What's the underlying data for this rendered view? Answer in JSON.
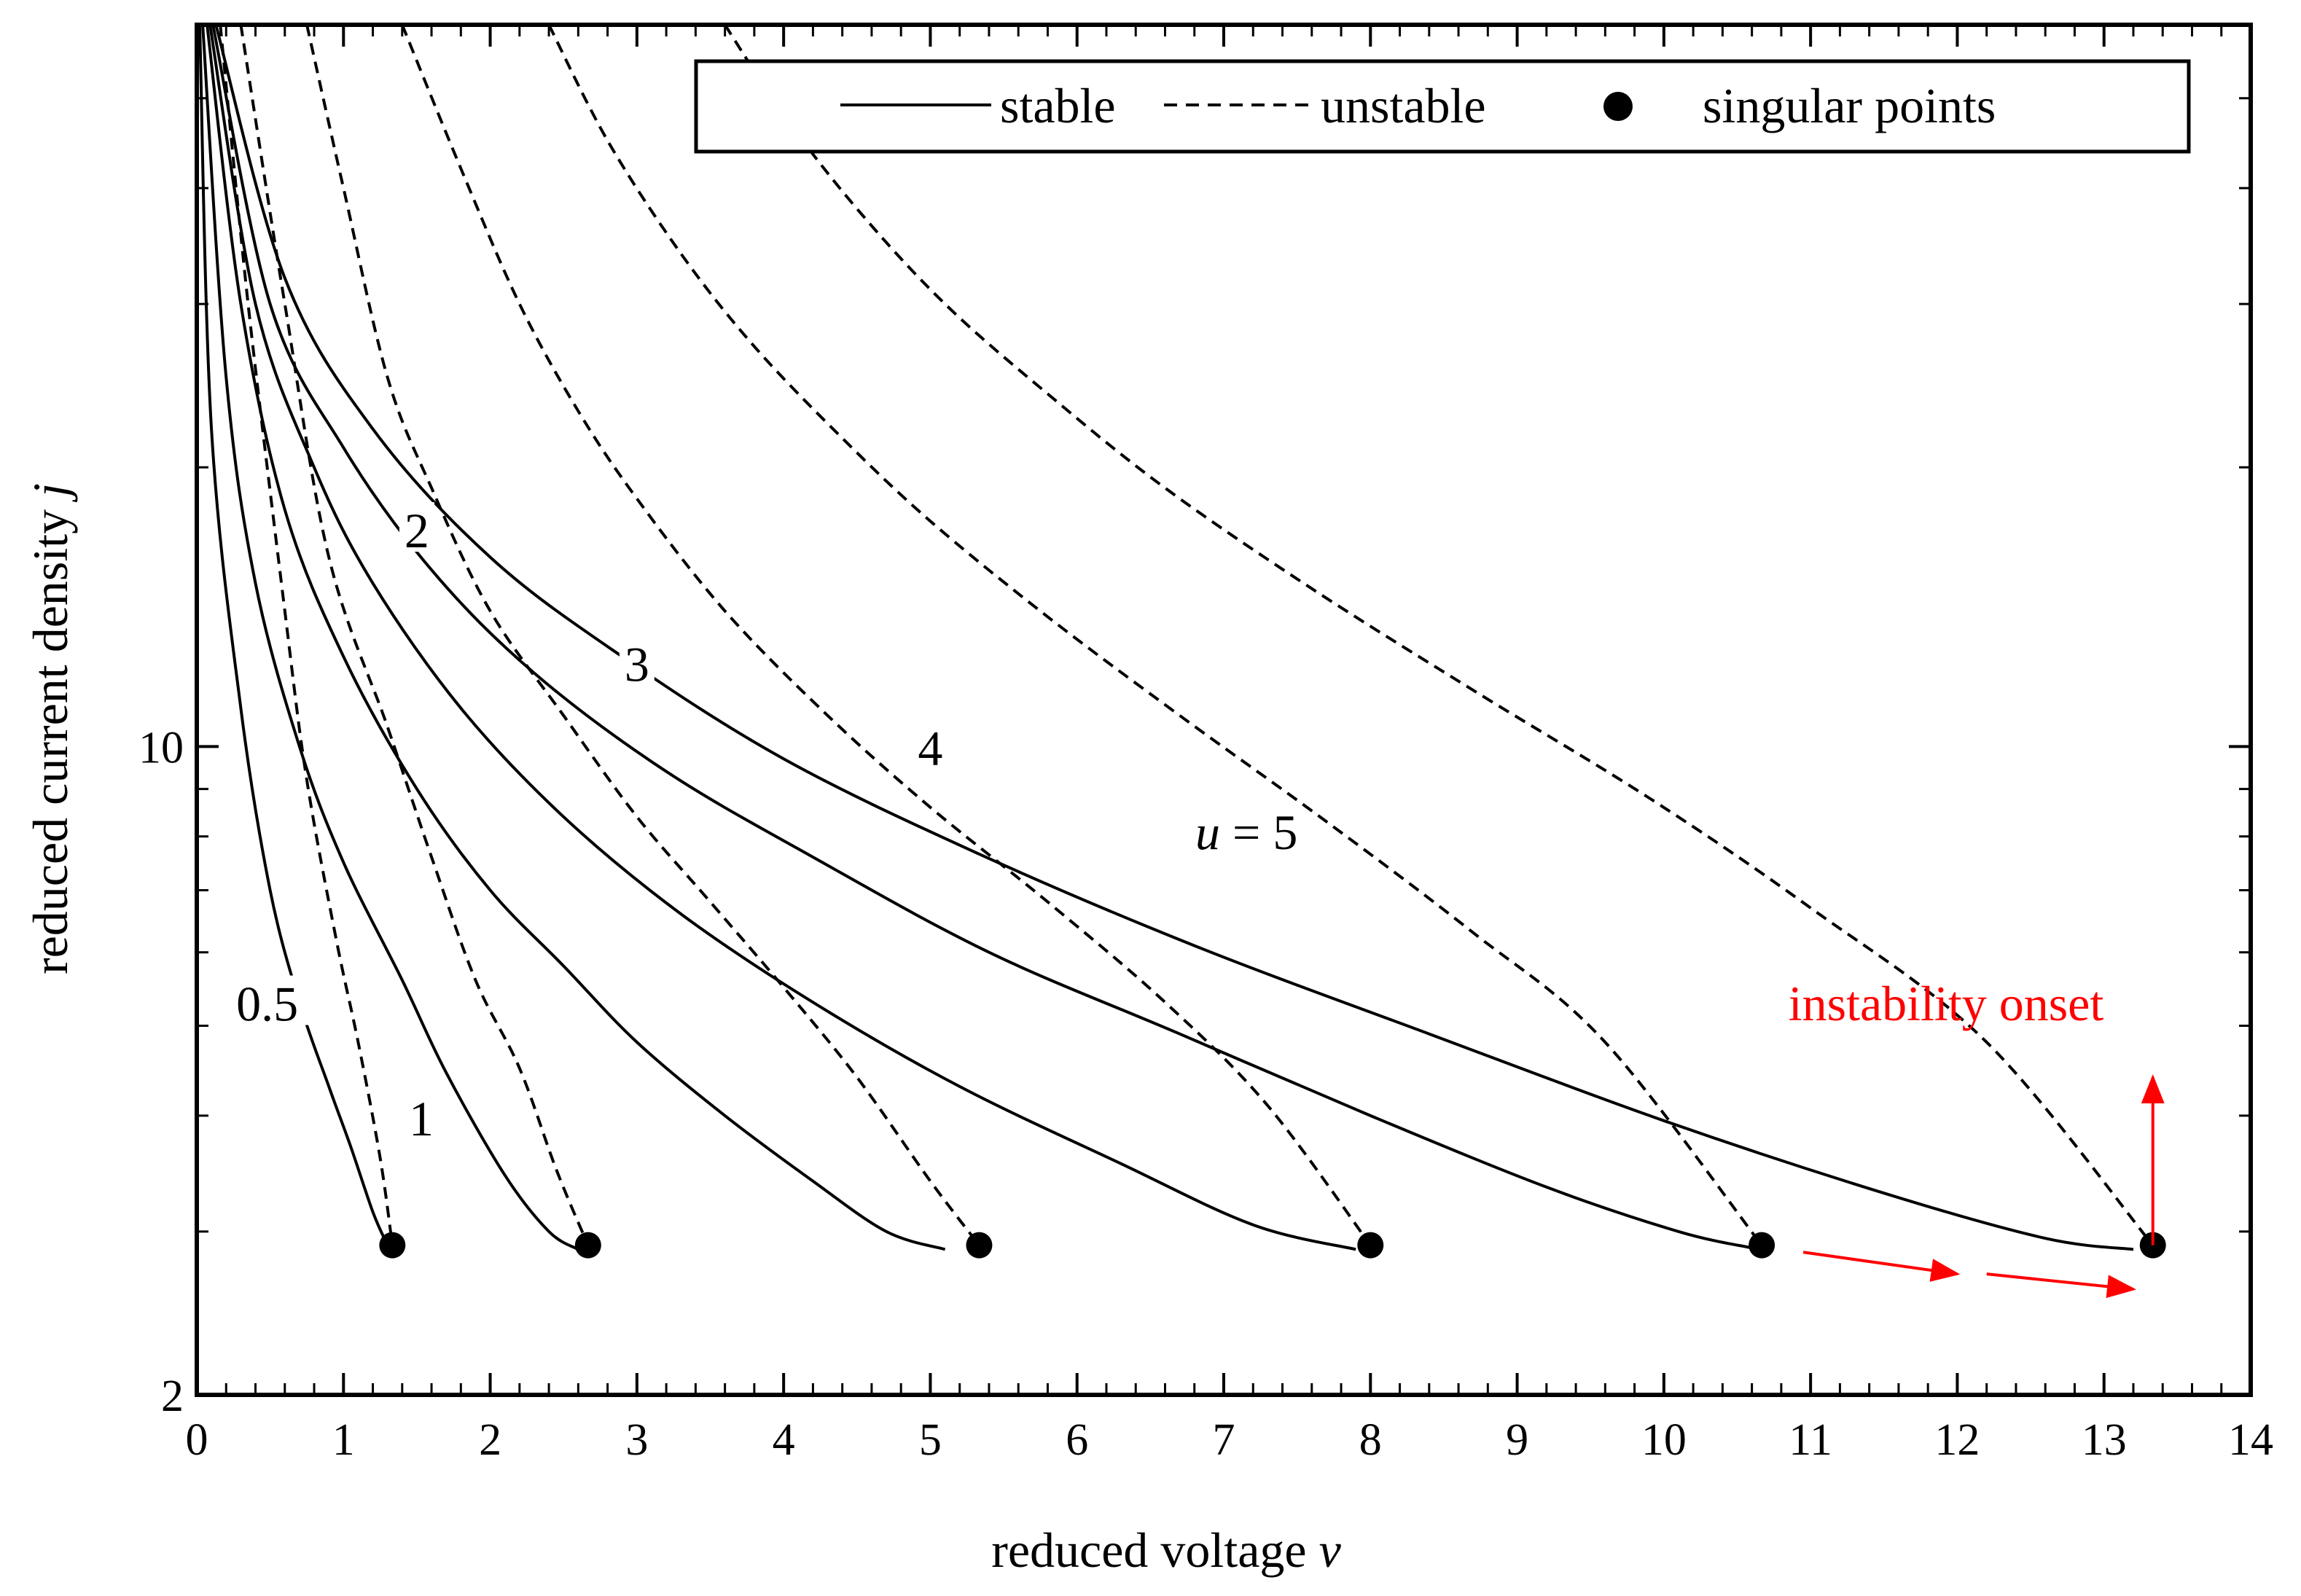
{
  "chart_data": {
    "type": "line",
    "x_axis": {
      "label": "reduced voltage",
      "label_symbol": "v",
      "range": [
        0,
        14
      ],
      "ticks": [
        0,
        1,
        2,
        3,
        4,
        5,
        6,
        7,
        8,
        9,
        10,
        11,
        12,
        13,
        14
      ]
    },
    "y_axis": {
      "label": "reduced current density",
      "label_symbol": "j",
      "scale": "log",
      "range": [
        2,
        60
      ],
      "tick_labels": [
        {
          "value": 2,
          "text": "2"
        },
        {
          "value": 10,
          "text": "10"
        }
      ]
    },
    "legend": {
      "placement": "top-right",
      "entries": [
        {
          "label": "stable",
          "style": "solid"
        },
        {
          "label": "unstable",
          "style": "dashed"
        },
        {
          "label": "singular points",
          "style": "marker"
        }
      ]
    },
    "series": [
      {
        "curve_label": "0.5",
        "u": 0.5,
        "singular_point": {
          "v": 1.333,
          "j": 2.9
        },
        "stable": [
          [
            0.02,
            60
          ],
          [
            0.1,
            22
          ],
          [
            0.3,
            11
          ],
          [
            0.5,
            7.0
          ],
          [
            0.7,
            5.3
          ],
          [
            0.9,
            4.3
          ],
          [
            1.05,
            3.7
          ],
          [
            1.2,
            3.15
          ],
          [
            1.3,
            2.9
          ]
        ],
        "unstable": [
          [
            0.16,
            60
          ],
          [
            0.35,
            30
          ],
          [
            0.6,
            14
          ],
          [
            0.75,
            9.2
          ],
          [
            0.95,
            6.2
          ],
          [
            1.1,
            4.8
          ],
          [
            1.25,
            3.6
          ],
          [
            1.333,
            2.9
          ]
        ]
      },
      {
        "curve_label": "1",
        "u": 1,
        "singular_point": {
          "v": 2.667,
          "j": 2.9
        },
        "stable": [
          [
            0.04,
            60
          ],
          [
            0.2,
            25
          ],
          [
            0.4,
            15
          ],
          [
            0.7,
            10
          ],
          [
            1.0,
            7.5
          ],
          [
            1.4,
            5.6
          ],
          [
            1.7,
            4.45
          ],
          [
            2.1,
            3.45
          ],
          [
            2.4,
            3.0
          ],
          [
            2.6,
            2.87
          ]
        ],
        "unstable": [
          [
            0.3,
            60
          ],
          [
            0.6,
            30
          ],
          [
            0.9,
            16
          ],
          [
            1.3,
            10.5
          ],
          [
            1.6,
            7.6
          ],
          [
            1.9,
            5.6
          ],
          [
            2.2,
            4.5
          ],
          [
            2.45,
            3.5
          ],
          [
            2.667,
            2.9
          ]
        ]
      },
      {
        "curve_label": "",
        "u": 2,
        "singular_point": {
          "v": 5.333,
          "j": 2.9
        },
        "stable": [
          [
            0.07,
            60
          ],
          [
            0.3,
            30
          ],
          [
            0.6,
            18
          ],
          [
            1.0,
            12.5
          ],
          [
            1.5,
            9.0
          ],
          [
            2.0,
            7.0
          ],
          [
            2.5,
            5.8
          ],
          [
            3.0,
            4.8
          ],
          [
            3.6,
            4.0
          ],
          [
            4.2,
            3.4
          ],
          [
            4.7,
            3.0
          ],
          [
            5.1,
            2.87
          ]
        ],
        "unstable": [
          [
            0.75,
            60
          ],
          [
            1.0,
            40
          ],
          [
            1.3,
            25
          ],
          [
            1.6,
            19
          ],
          [
            2.0,
            14
          ],
          [
            2.5,
            10.8
          ],
          [
            3.0,
            8.4
          ],
          [
            3.5,
            6.8
          ],
          [
            4.0,
            5.5
          ],
          [
            4.5,
            4.4
          ],
          [
            5.0,
            3.4
          ],
          [
            5.333,
            2.9
          ]
        ]
      },
      {
        "curve_label": "2",
        "u": 2,
        "singular_point": {
          "v": 8.0,
          "j": 2.9
        },
        "stable": [
          [
            0.09,
            60
          ],
          [
            0.4,
            30
          ],
          [
            0.8,
            20
          ],
          [
            1.2,
            15
          ],
          [
            1.8,
            11
          ],
          [
            2.5,
            8.4
          ],
          [
            3.3,
            6.6
          ],
          [
            4.2,
            5.3
          ],
          [
            5.2,
            4.3
          ],
          [
            6.3,
            3.55
          ],
          [
            7.2,
            3.05
          ],
          [
            7.9,
            2.87
          ]
        ],
        "unstable": [
          [
            1.4,
            60
          ],
          [
            1.8,
            42
          ],
          [
            2.2,
            30
          ],
          [
            2.6,
            23
          ],
          [
            3.0,
            18.5
          ],
          [
            3.6,
            14
          ],
          [
            4.3,
            10.8
          ],
          [
            5.0,
            8.6
          ],
          [
            5.8,
            6.8
          ],
          [
            6.6,
            5.3
          ],
          [
            7.3,
            4.1
          ],
          [
            8.0,
            2.9
          ]
        ]
      },
      {
        "curve_label": "3",
        "u": 3,
        "singular_point": {
          "v": 10.667,
          "j": 2.9
        },
        "stable": [
          [
            0.11,
            60
          ],
          [
            0.5,
            30
          ],
          [
            1.0,
            21
          ],
          [
            1.6,
            15.5
          ],
          [
            2.3,
            12
          ],
          [
            3.2,
            9.4
          ],
          [
            4.2,
            7.6
          ],
          [
            5.4,
            6.0
          ],
          [
            6.7,
            4.9
          ],
          [
            8.0,
            4.0
          ],
          [
            9.2,
            3.35
          ],
          [
            10.1,
            3.0
          ],
          [
            10.6,
            2.88
          ]
        ],
        "unstable": [
          [
            2.4,
            60
          ],
          [
            2.8,
            45
          ],
          [
            3.3,
            34
          ],
          [
            3.8,
            27
          ],
          [
            4.4,
            21.5
          ],
          [
            5.0,
            17.5
          ],
          [
            5.8,
            13.8
          ],
          [
            6.7,
            10.8
          ],
          [
            7.7,
            8.3
          ],
          [
            8.7,
            6.3
          ],
          [
            9.6,
            4.8
          ],
          [
            10.667,
            2.9
          ]
        ]
      },
      {
        "curve_label": "4",
        "u": 4,
        "singular_point": {
          "v": 13.333,
          "j": 2.9
        },
        "stable": [
          [
            0.13,
            60
          ],
          [
            0.6,
            32
          ],
          [
            1.2,
            22
          ],
          [
            2.0,
            16
          ],
          [
            2.9,
            12.5
          ],
          [
            4.0,
            9.7
          ],
          [
            5.3,
            7.7
          ],
          [
            6.8,
            6.1
          ],
          [
            8.4,
            4.9
          ],
          [
            10.0,
            3.95
          ],
          [
            11.5,
            3.3
          ],
          [
            12.6,
            2.95
          ],
          [
            13.2,
            2.87
          ]
        ],
        "unstable": [
          [
            3.6,
            60
          ],
          [
            4.0,
            48
          ],
          [
            4.5,
            38
          ],
          [
            5.1,
            30
          ],
          [
            5.8,
            24
          ],
          [
            6.6,
            19
          ],
          [
            7.6,
            14.8
          ],
          [
            8.7,
            11.5
          ],
          [
            9.9,
            8.8
          ],
          [
            11.0,
            6.7
          ],
          [
            12.2,
            4.8
          ],
          [
            13.333,
            2.9
          ]
        ]
      }
    ],
    "curve_labels": [
      "0.5",
      "1",
      "2",
      "3",
      "4"
    ],
    "curve_label_u": {
      "symbol": "u",
      "text": " = 5"
    },
    "annotations": [
      {
        "text": "instability onset",
        "color": "#ff0000"
      }
    ],
    "arrows": [
      {
        "from": [
          13.333,
          2.9
        ],
        "to": [
          13.333,
          4.4
        ],
        "color": "#ff0000"
      },
      {
        "from": [
          10.95,
          2.85
        ],
        "to": [
          12.0,
          2.7
        ],
        "color": "#ff0000"
      },
      {
        "from": [
          12.2,
          2.7
        ],
        "to": [
          13.2,
          2.6
        ],
        "color": "#ff0000"
      }
    ]
  }
}
